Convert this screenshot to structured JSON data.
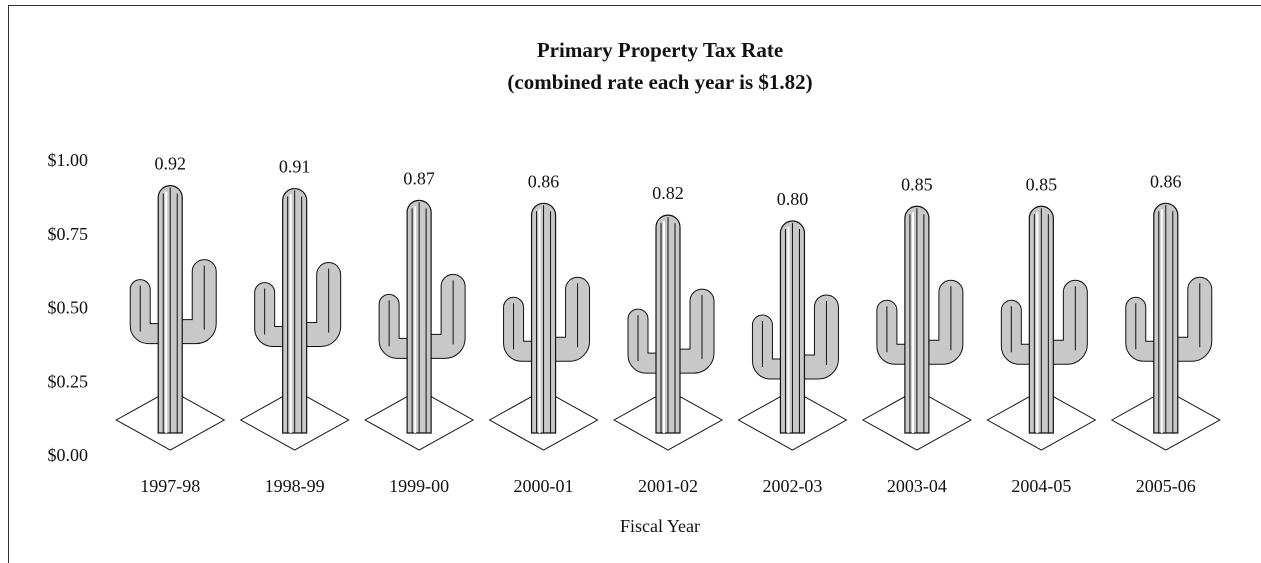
{
  "chart_data": {
    "type": "cactus",
    "title": [
      "Primary Property Tax Rate",
      "(combined rate each year is $1.82)"
    ],
    "x_label": "Fiscal Year",
    "categories": [
      "1997-98",
      "1998-99",
      "1999-00",
      "2000-01",
      "2001-02",
      "2002-03",
      "2003-04",
      "2004-05",
      "2005-06"
    ],
    "values": [
      0.92,
      0.91,
      0.87,
      0.86,
      0.82,
      0.8,
      0.85,
      0.85,
      0.86
    ],
    "value_labels": [
      "0.92",
      "0.91",
      "0.87",
      "0.86",
      "0.82",
      "0.80",
      "0.85",
      "0.85",
      "0.86"
    ],
    "color": "#c8c8c8",
    "ylim": [
      0,
      1
    ],
    "yticks": [
      {
        "value": 0,
        "label": "$0.00"
      },
      {
        "value": 0.25,
        "label": "$0.25"
      },
      {
        "value": 0.5,
        "label": "$0.50"
      },
      {
        "value": 0.75,
        "label": "$0.75"
      },
      {
        "value": 1,
        "label": "$1.00"
      }
    ],
    "grid": false
  }
}
